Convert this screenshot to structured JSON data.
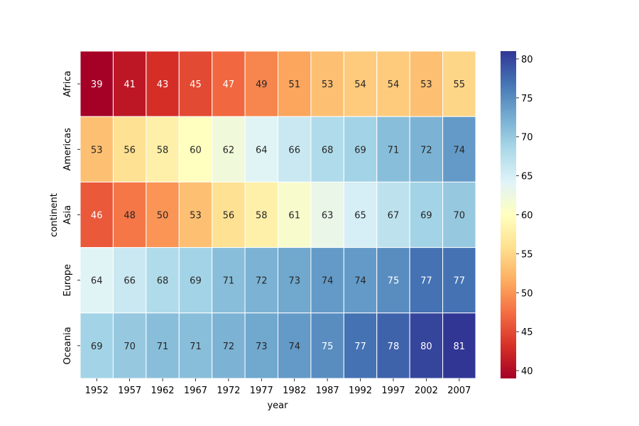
{
  "chart_data": {
    "type": "heatmap",
    "title": "",
    "xlabel": "year",
    "ylabel": "continent",
    "x_categories": [
      "1952",
      "1957",
      "1962",
      "1967",
      "1972",
      "1977",
      "1982",
      "1987",
      "1992",
      "1997",
      "2002",
      "2007"
    ],
    "y_categories": [
      "Africa",
      "Americas",
      "Asia",
      "Europe",
      "Oceania"
    ],
    "values": [
      [
        39,
        41,
        43,
        45,
        47,
        49,
        51,
        53,
        54,
        54,
        53,
        55
      ],
      [
        53,
        56,
        58,
        60,
        62,
        64,
        66,
        68,
        69,
        71,
        72,
        74
      ],
      [
        46,
        48,
        50,
        53,
        56,
        58,
        61,
        63,
        65,
        67,
        69,
        70
      ],
      [
        64,
        66,
        68,
        69,
        71,
        72,
        73,
        74,
        74,
        75,
        77,
        77
      ],
      [
        69,
        70,
        71,
        71,
        72,
        73,
        74,
        75,
        77,
        78,
        80,
        81
      ]
    ],
    "annotated": true,
    "colormap": "RdYlBu",
    "colorbar": {
      "range": [
        39,
        81
      ],
      "ticks": [
        40,
        45,
        50,
        55,
        60,
        65,
        70,
        75,
        80
      ],
      "colors": [
        "#a50026",
        "#d73027",
        "#f46d43",
        "#fdae61",
        "#fee090",
        "#ffffbf",
        "#e0f3f8",
        "#abd9e9",
        "#74add1",
        "#4575b4",
        "#313695"
      ]
    },
    "grid": false,
    "cell_border_color": "#ffffff"
  }
}
